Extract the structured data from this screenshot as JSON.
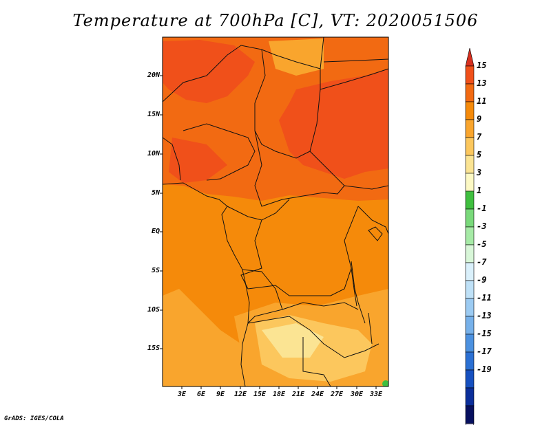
{
  "title": "Temperature at 700hPa [C], VT: 2020051506",
  "credit": "GrADS: IGES/COLA",
  "lat_ticks": [
    "20N",
    "15N",
    "10N",
    "5N",
    "EQ",
    "5S",
    "10S",
    "15S"
  ],
  "lon_ticks": [
    "3E",
    "6E",
    "9E",
    "12E",
    "15E",
    "18E",
    "21E",
    "24E",
    "27E",
    "30E",
    "33E"
  ],
  "colorbar": {
    "labels": [
      "15",
      "13",
      "11",
      "9",
      "7",
      "5",
      "3",
      "1",
      "-1",
      "-3",
      "-5",
      "-7",
      "-9",
      "-11",
      "-13",
      "-15",
      "-17",
      "-19"
    ],
    "colors": [
      "#d7301f",
      "#f0501a",
      "#f26a12",
      "#f58a0a",
      "#f9a52d",
      "#fcc75d",
      "#fbe493",
      "#fdf9c4",
      "#3fbf3f",
      "#79d97a",
      "#a6eaa6",
      "#d8f6d8",
      "#daf0fb",
      "#bfe1f7",
      "#9ccbf2",
      "#77b1ea",
      "#4c91e0",
      "#2b70d3",
      "#1650c0",
      "#0b2e9a",
      "#07105f",
      "#e8e4f6"
    ]
  },
  "map": {
    "palette": {
      "t13": "#f0501a",
      "t11": "#f26a12",
      "t9": "#f58a0a",
      "t7": "#f9a52d",
      "t5": "#fcc75d",
      "t3": "#fbe493",
      "t1": "#fdf9c4",
      "green": "#3fbf3f"
    }
  }
}
